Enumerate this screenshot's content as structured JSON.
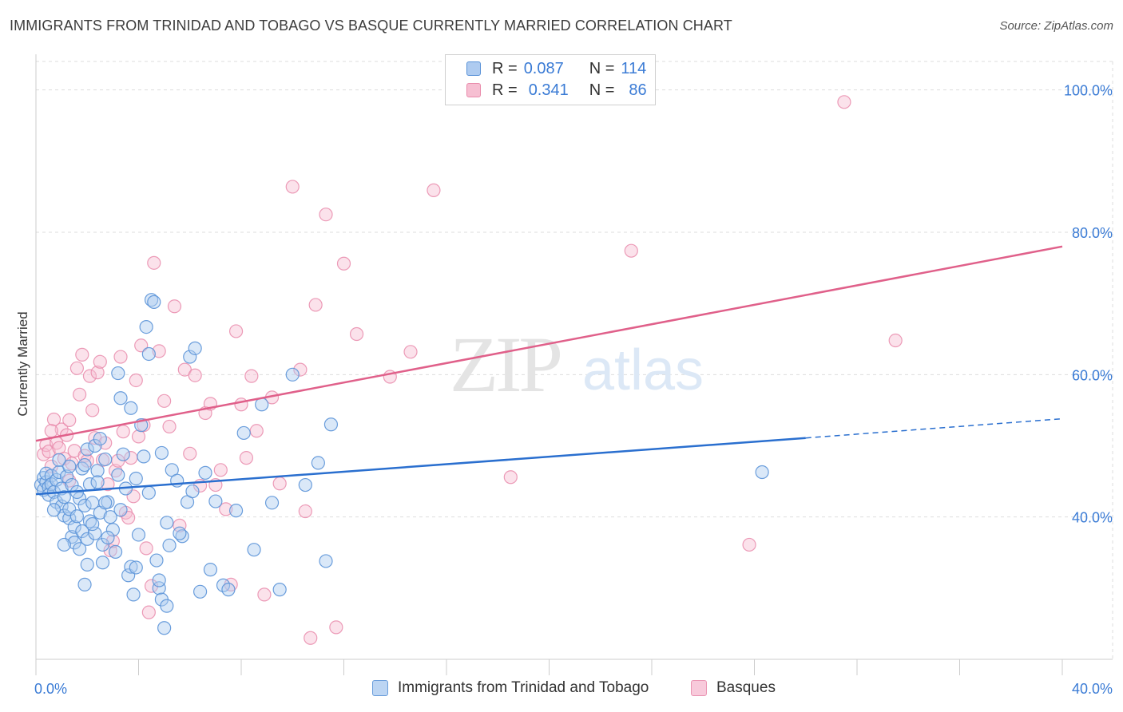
{
  "header": {
    "title": "IMMIGRANTS FROM TRINIDAD AND TOBAGO VS BASQUE CURRENTLY MARRIED CORRELATION CHART",
    "source": "Source: ZipAtlas.com"
  },
  "watermark": {
    "zip": "ZIP",
    "atlas": "atlas"
  },
  "legend": {
    "rows": [
      {
        "r_label": "R =",
        "r_value": "0.087",
        "n_label": "N =",
        "n_value": "114"
      },
      {
        "r_label": "R =",
        "r_value": "0.341",
        "n_label": "N =",
        "n_value": "86"
      }
    ]
  },
  "colors": {
    "blue_fill": "#aecbf0",
    "blue_stroke": "#5b93d8",
    "blue_line": "#2a6fcf",
    "pink_fill": "#f6bfd2",
    "pink_stroke": "#e98bab",
    "pink_line": "#e0608a",
    "axis_label": "#3a7bd5",
    "grid": "#dddddd"
  },
  "chart_data": {
    "type": "scatter",
    "title": "IMMIGRANTS FROM TRINIDAD AND TOBAGO VS BASQUE CURRENTLY MARRIED CORRELATION CHART",
    "xlabel": "",
    "ylabel": "Currently Married",
    "xlim": [
      0,
      40
    ],
    "ylim": [
      20,
      104
    ],
    "x_tick_labels": [
      "0.0%",
      "40.0%"
    ],
    "y_ticks": [
      40,
      60,
      80,
      100
    ],
    "y_tick_labels": [
      "40.0%",
      "60.0%",
      "80.0%",
      "100.0%"
    ],
    "grid": true,
    "legend_position": "top-center",
    "series": [
      {
        "name": "Immigrants from Trinidad and Tobago",
        "R": 0.087,
        "N": 114,
        "trend": {
          "x": [
            0,
            30
          ],
          "y": [
            43.2,
            51.1
          ],
          "dashed_extension_to_x": 40,
          "dashed_end_y": 53.8
        },
        "points": [
          [
            0.2,
            44.5
          ],
          [
            0.3,
            45.5
          ],
          [
            0.3,
            43.8
          ],
          [
            0.4,
            44.9
          ],
          [
            0.4,
            46.1
          ],
          [
            0.5,
            44.2
          ],
          [
            0.5,
            43.1
          ],
          [
            0.6,
            45.8
          ],
          [
            0.6,
            44.6
          ],
          [
            0.7,
            43.5
          ],
          [
            0.8,
            45.2
          ],
          [
            0.8,
            42.1
          ],
          [
            0.9,
            46.3
          ],
          [
            1.0,
            41.5
          ],
          [
            1.0,
            44.0
          ],
          [
            1.1,
            40.2
          ],
          [
            1.1,
            42.8
          ],
          [
            1.2,
            45.7
          ],
          [
            1.3,
            39.8
          ],
          [
            1.3,
            41.1
          ],
          [
            1.4,
            37.2
          ],
          [
            1.4,
            44.5
          ],
          [
            1.5,
            38.6
          ],
          [
            1.5,
            36.4
          ],
          [
            1.6,
            40.1
          ],
          [
            1.7,
            35.5
          ],
          [
            1.7,
            42.6
          ],
          [
            1.8,
            46.8
          ],
          [
            1.8,
            38.0
          ],
          [
            1.9,
            41.6
          ],
          [
            2.0,
            36.9
          ],
          [
            2.0,
            49.5
          ],
          [
            2.1,
            44.6
          ],
          [
            2.1,
            39.4
          ],
          [
            2.2,
            42.0
          ],
          [
            2.3,
            37.7
          ],
          [
            2.3,
            50.0
          ],
          [
            2.4,
            46.5
          ],
          [
            2.5,
            40.6
          ],
          [
            2.6,
            33.6
          ],
          [
            2.6,
            36.1
          ],
          [
            2.7,
            48.1
          ],
          [
            2.8,
            42.1
          ],
          [
            2.9,
            40.0
          ],
          [
            3.0,
            38.2
          ],
          [
            3.1,
            35.1
          ],
          [
            3.2,
            60.2
          ],
          [
            3.3,
            56.7
          ],
          [
            3.4,
            48.8
          ],
          [
            3.5,
            44.0
          ],
          [
            3.6,
            31.8
          ],
          [
            3.7,
            33.0
          ],
          [
            3.8,
            29.1
          ],
          [
            3.9,
            45.4
          ],
          [
            4.0,
            37.5
          ],
          [
            4.1,
            52.9
          ],
          [
            4.2,
            48.5
          ],
          [
            4.3,
            66.7
          ],
          [
            4.4,
            62.9
          ],
          [
            4.5,
            70.5
          ],
          [
            4.6,
            70.2
          ],
          [
            4.7,
            33.9
          ],
          [
            4.8,
            30.0
          ],
          [
            4.9,
            28.4
          ],
          [
            5.0,
            24.4
          ],
          [
            5.1,
            39.2
          ],
          [
            5.2,
            36.0
          ],
          [
            5.3,
            46.6
          ],
          [
            5.5,
            45.1
          ],
          [
            5.7,
            37.3
          ],
          [
            5.9,
            42.1
          ],
          [
            6.0,
            62.5
          ],
          [
            6.2,
            63.7
          ],
          [
            6.4,
            29.5
          ],
          [
            6.6,
            46.2
          ],
          [
            6.8,
            32.6
          ],
          [
            7.0,
            42.2
          ],
          [
            7.3,
            30.4
          ],
          [
            7.5,
            29.8
          ],
          [
            7.8,
            40.9
          ],
          [
            8.1,
            51.8
          ],
          [
            8.5,
            35.4
          ],
          [
            8.8,
            55.8
          ],
          [
            9.2,
            42.0
          ],
          [
            9.5,
            29.8
          ],
          [
            10.0,
            60.0
          ],
          [
            10.5,
            44.5
          ],
          [
            11.0,
            47.6
          ],
          [
            11.3,
            33.8
          ],
          [
            11.5,
            53.0
          ],
          [
            1.9,
            47.3
          ],
          [
            2.4,
            44.9
          ],
          [
            2.7,
            42.0
          ],
          [
            1.3,
            47.1
          ],
          [
            0.9,
            48.0
          ],
          [
            1.6,
            43.5
          ],
          [
            2.2,
            39.0
          ],
          [
            3.7,
            55.3
          ],
          [
            2.5,
            51.0
          ],
          [
            3.2,
            45.9
          ],
          [
            1.1,
            36.1
          ],
          [
            0.7,
            41.0
          ],
          [
            1.9,
            30.5
          ],
          [
            2.8,
            37.1
          ],
          [
            4.4,
            43.4
          ],
          [
            3.9,
            32.9
          ],
          [
            2.0,
            33.3
          ],
          [
            5.1,
            27.5
          ],
          [
            4.8,
            31.1
          ],
          [
            3.3,
            41.0
          ],
          [
            5.6,
            37.7
          ],
          [
            6.1,
            43.6
          ],
          [
            4.9,
            49.0
          ],
          [
            28.3,
            46.3
          ]
        ]
      },
      {
        "name": "Basques",
        "R": 0.341,
        "N": 86,
        "trend": {
          "x": [
            0,
            40
          ],
          "y": [
            50.7,
            78.0
          ]
        },
        "points": [
          [
            0.3,
            48.8
          ],
          [
            0.4,
            50.1
          ],
          [
            0.5,
            49.2
          ],
          [
            0.6,
            47.1
          ],
          [
            0.7,
            53.7
          ],
          [
            0.8,
            50.4
          ],
          [
            0.9,
            49.7
          ],
          [
            1.0,
            52.3
          ],
          [
            1.1,
            48.2
          ],
          [
            1.2,
            51.5
          ],
          [
            1.3,
            53.6
          ],
          [
            1.4,
            47.5
          ],
          [
            1.5,
            49.3
          ],
          [
            1.6,
            60.9
          ],
          [
            1.7,
            57.2
          ],
          [
            1.8,
            62.8
          ],
          [
            1.9,
            48.6
          ],
          [
            2.0,
            47.9
          ],
          [
            2.1,
            59.8
          ],
          [
            2.2,
            55.0
          ],
          [
            2.3,
            51.1
          ],
          [
            2.4,
            60.3
          ],
          [
            2.5,
            61.8
          ],
          [
            2.6,
            48.0
          ],
          [
            2.7,
            50.4
          ],
          [
            2.8,
            44.6
          ],
          [
            2.9,
            35.3
          ],
          [
            3.0,
            36.6
          ],
          [
            3.1,
            46.5
          ],
          [
            3.2,
            47.9
          ],
          [
            3.3,
            62.5
          ],
          [
            3.4,
            52.0
          ],
          [
            3.5,
            40.6
          ],
          [
            3.6,
            39.9
          ],
          [
            3.7,
            48.3
          ],
          [
            3.8,
            42.9
          ],
          [
            3.9,
            59.2
          ],
          [
            4.0,
            51.3
          ],
          [
            4.1,
            64.1
          ],
          [
            4.2,
            52.9
          ],
          [
            4.3,
            35.6
          ],
          [
            4.4,
            26.6
          ],
          [
            4.5,
            30.3
          ],
          [
            4.6,
            75.7
          ],
          [
            4.8,
            63.3
          ],
          [
            5.0,
            56.3
          ],
          [
            5.2,
            52.7
          ],
          [
            5.4,
            69.6
          ],
          [
            5.6,
            38.8
          ],
          [
            5.8,
            60.7
          ],
          [
            6.0,
            48.9
          ],
          [
            6.2,
            59.9
          ],
          [
            6.4,
            44.4
          ],
          [
            6.6,
            54.6
          ],
          [
            6.8,
            55.9
          ],
          [
            7.0,
            44.5
          ],
          [
            7.2,
            46.6
          ],
          [
            7.4,
            41.1
          ],
          [
            7.6,
            30.5
          ],
          [
            7.8,
            66.1
          ],
          [
            8.0,
            55.8
          ],
          [
            8.2,
            48.3
          ],
          [
            8.4,
            59.8
          ],
          [
            8.6,
            52.1
          ],
          [
            8.9,
            29.1
          ],
          [
            9.2,
            56.8
          ],
          [
            9.5,
            44.7
          ],
          [
            10.0,
            86.4
          ],
          [
            10.3,
            60.7
          ],
          [
            10.5,
            40.8
          ],
          [
            10.7,
            23.0
          ],
          [
            10.9,
            69.8
          ],
          [
            11.3,
            82.5
          ],
          [
            11.7,
            24.5
          ],
          [
            12.0,
            75.6
          ],
          [
            12.5,
            65.7
          ],
          [
            13.8,
            59.7
          ],
          [
            14.6,
            63.2
          ],
          [
            15.5,
            85.9
          ],
          [
            18.5,
            45.6
          ],
          [
            23.2,
            77.4
          ],
          [
            27.8,
            36.1
          ],
          [
            31.5,
            98.3
          ],
          [
            33.5,
            64.8
          ],
          [
            0.6,
            52.1
          ],
          [
            1.3,
            45.1
          ]
        ]
      }
    ]
  },
  "bottom_legend": {
    "items": [
      {
        "label": "Immigrants from Trinidad and Tobago"
      },
      {
        "label": "Basques"
      }
    ]
  }
}
